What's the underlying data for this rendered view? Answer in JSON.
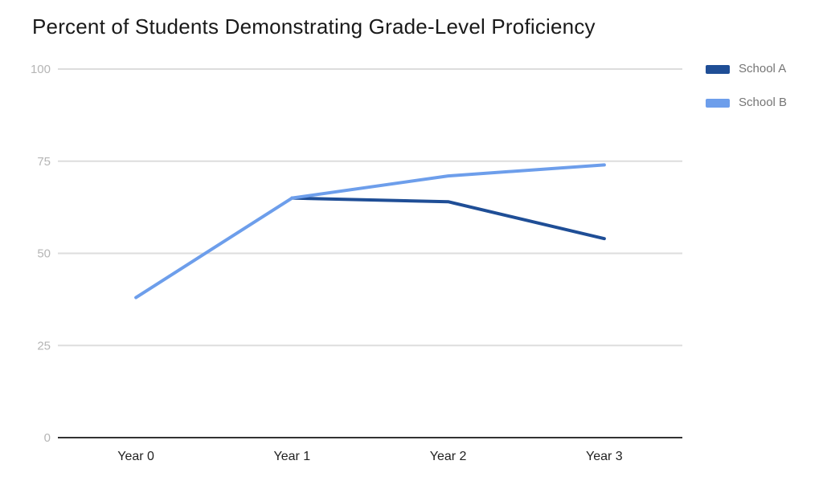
{
  "chart_data": {
    "type": "line",
    "title": "Percent of Students Demonstrating Grade-Level Proficiency",
    "categories": [
      "Year 0",
      "Year 1",
      "Year 2",
      "Year 3"
    ],
    "series": [
      {
        "name": "School A",
        "color": "#1f4e96",
        "values": [
          null,
          65,
          64,
          54
        ]
      },
      {
        "name": "School B",
        "color": "#6d9eeb",
        "values": [
          38,
          65,
          71,
          74
        ]
      }
    ],
    "xlabel": "",
    "ylabel": "",
    "ylim": [
      0,
      100
    ],
    "yticks": [
      0,
      25,
      50,
      75,
      100
    ],
    "grid": true,
    "legend_position": "right",
    "line_width": 4
  },
  "colors": {
    "background": "#ffffff",
    "grid": "#dddddd",
    "baseline": "#333333",
    "y_tick_text": "#b5b5b5",
    "x_tick_text": "#222222",
    "legend_text": "#757575",
    "title_text": "#1a1a1a"
  }
}
